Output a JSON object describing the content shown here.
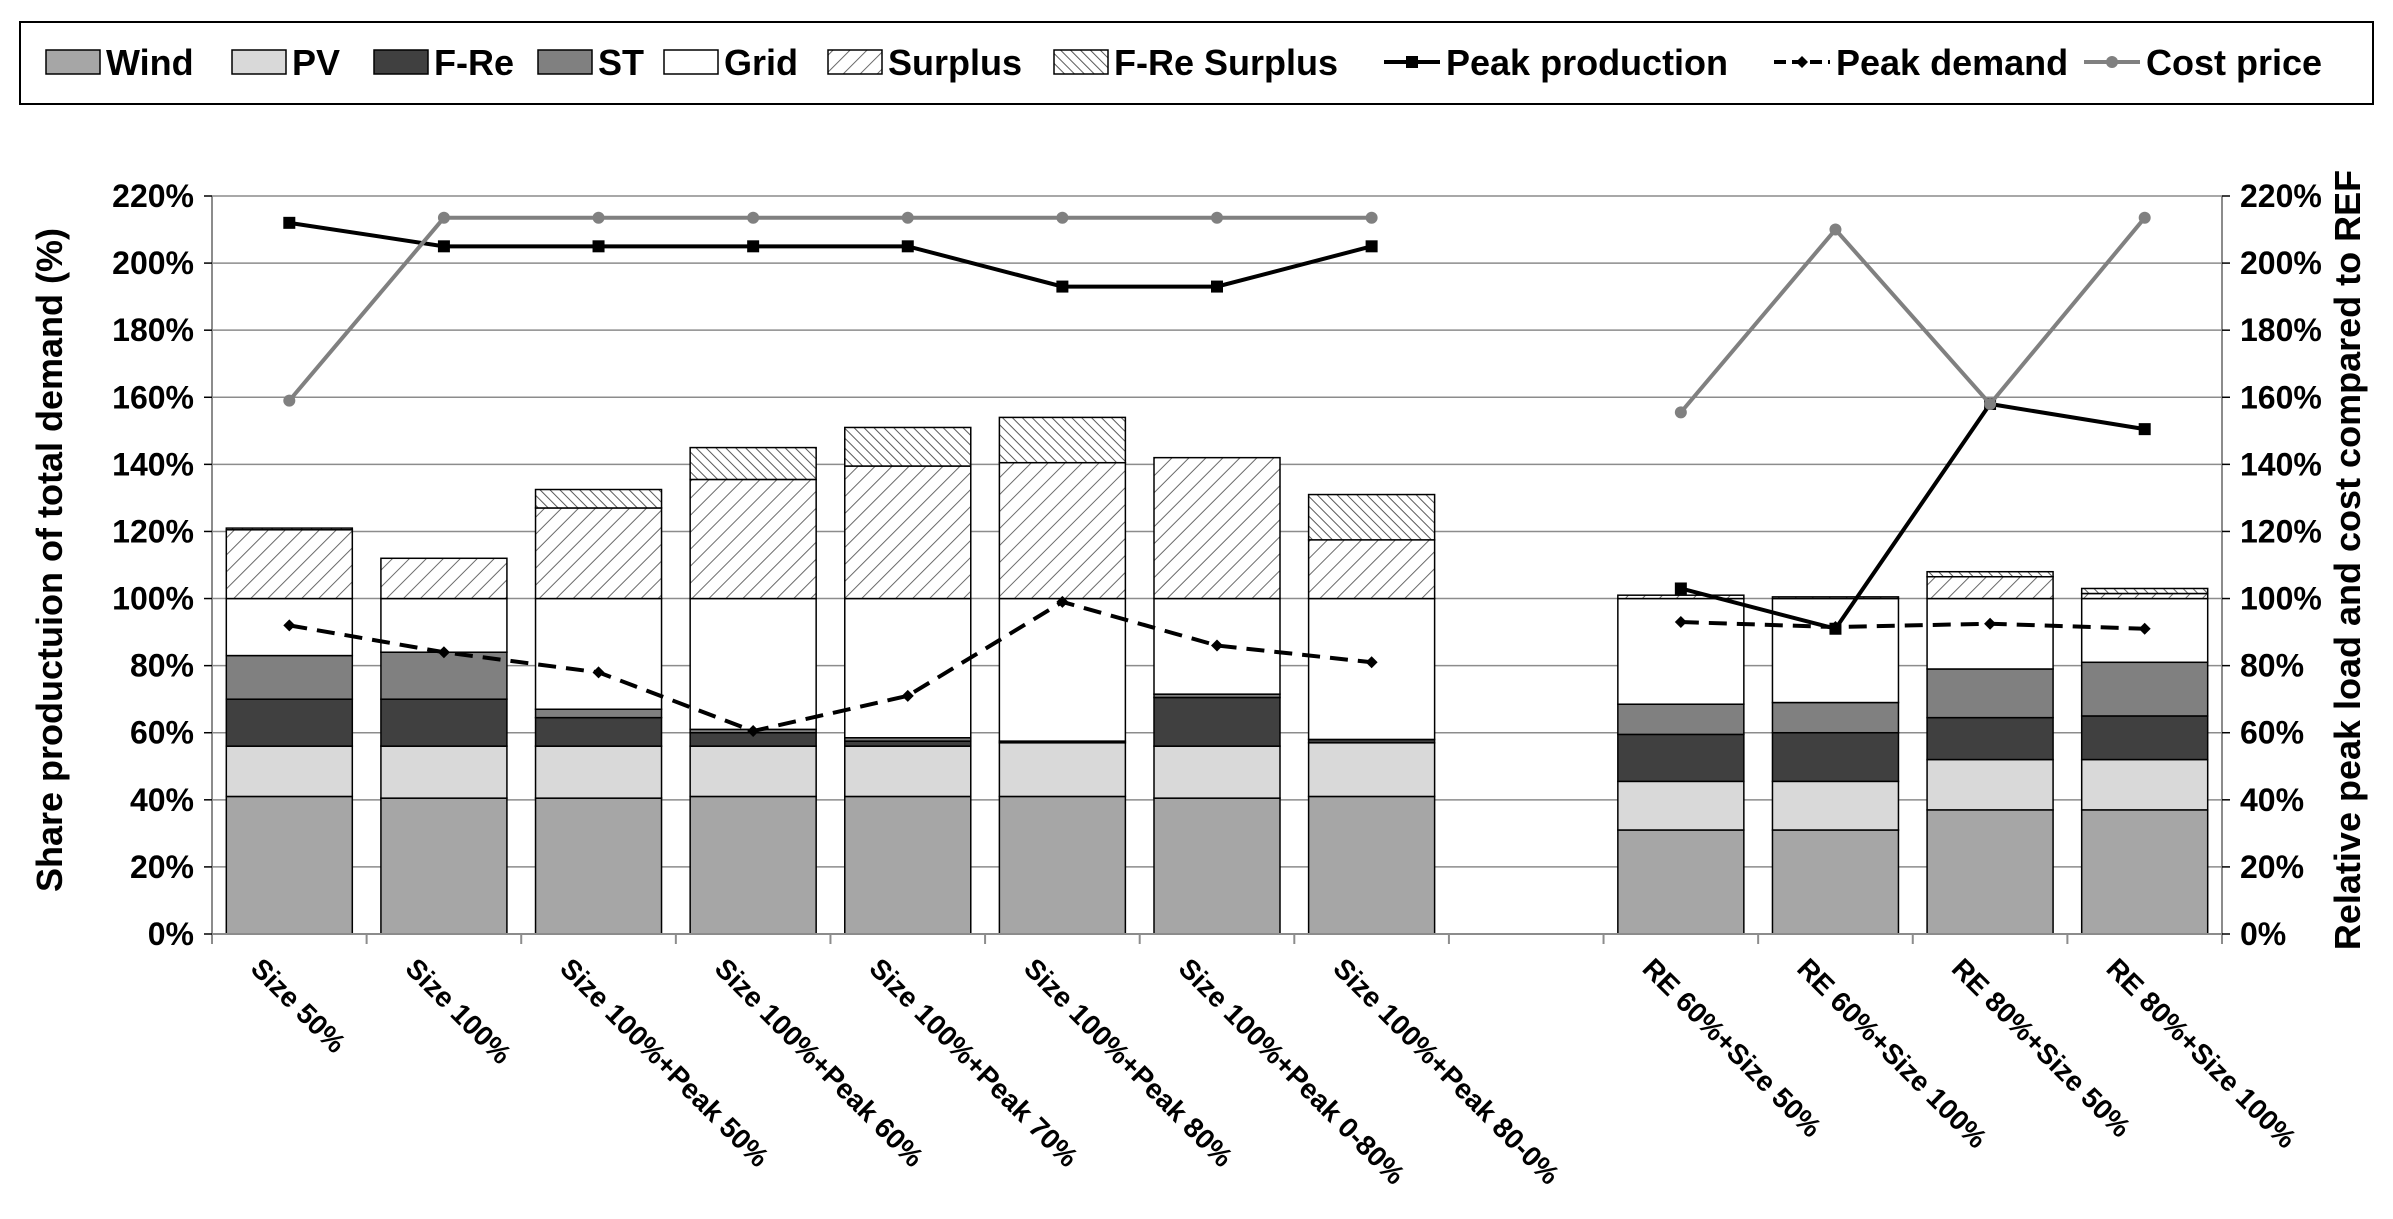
{
  "chart_data": {
    "type": "bar",
    "stacked": true,
    "title": "",
    "ylabel": "Share productuion of total demand (%)",
    "y2label": "Relative peak load and cost compared to REF",
    "ylim": [
      0,
      220
    ],
    "y2lim": [
      0,
      220
    ],
    "yticks": [
      "0%",
      "20%",
      "40%",
      "60%",
      "80%",
      "100%",
      "120%",
      "140%",
      "160%",
      "180%",
      "200%",
      "220%"
    ],
    "y2ticks": [
      "0%",
      "20%",
      "40%",
      "60%",
      "80%",
      "100%",
      "120%",
      "140%",
      "160%",
      "180%",
      "200%",
      "220%"
    ],
    "legend_position": "top",
    "categories": [
      "Size 50%",
      "Size 100%",
      "Size 100%+Peak 50%",
      "Size 100%+Peak 60%",
      "Size 100%+Peak 70%",
      "Size 100%+Peak 80%",
      "Size 100%+Peak 0-80%",
      "Size 100%+Peak 80-0%",
      "",
      "RE 60%+Size 50%",
      "RE 60%+Size 100%",
      "RE 80%+Size 50%",
      "RE 80%+Size 100%"
    ],
    "series": [
      {
        "name": "Wind",
        "kind": "bar",
        "color": "#a6a6a6",
        "values": [
          41,
          40.5,
          40.5,
          41,
          41,
          41,
          40.5,
          41,
          null,
          31,
          31,
          37,
          37
        ]
      },
      {
        "name": "PV",
        "kind": "bar",
        "color": "#d9d9d9",
        "values": [
          15,
          15.5,
          15.5,
          15,
          15,
          16,
          15.5,
          16,
          null,
          14.5,
          14.5,
          15,
          15
        ]
      },
      {
        "name": "F-Re",
        "kind": "bar",
        "color": "#404040",
        "values": [
          14,
          14,
          8.5,
          4,
          1.5,
          0.5,
          14.5,
          1,
          null,
          14,
          14.5,
          12.5,
          13
        ]
      },
      {
        "name": "ST",
        "kind": "bar",
        "color": "#808080",
        "values": [
          13,
          14,
          2.5,
          1,
          1,
          0,
          1,
          0,
          null,
          9,
          9,
          14.5,
          16
        ]
      },
      {
        "name": "Grid",
        "kind": "bar",
        "color": "#ffffff",
        "values": [
          17,
          16,
          33,
          39,
          41.5,
          42.5,
          28.5,
          42,
          null,
          31.5,
          31,
          21,
          19
        ]
      },
      {
        "name": "Surplus",
        "kind": "bar",
        "color": "#ffffff",
        "pattern": "hatch",
        "values": [
          20.5,
          12,
          27,
          35.5,
          39.5,
          40.5,
          42,
          17.5,
          null,
          1,
          0.5,
          6.5,
          1.5
        ]
      },
      {
        "name": "F-Re Surplus",
        "kind": "bar",
        "color": "#ffffff",
        "pattern": "hatch-dense",
        "values": [
          0.5,
          0,
          5.5,
          9.5,
          11.5,
          13.5,
          0,
          13.5,
          null,
          0,
          0,
          1.5,
          1.5
        ]
      },
      {
        "name": "Peak production",
        "kind": "line",
        "color": "#000000",
        "style": "solid",
        "marker": "square",
        "values": [
          212,
          205,
          205,
          205,
          205,
          193,
          193,
          205,
          null,
          103,
          91,
          158,
          150.5
        ]
      },
      {
        "name": "Peak demand",
        "kind": "line",
        "color": "#000000",
        "style": "dashed",
        "marker": "diamond",
        "values": [
          92,
          84,
          78,
          60.5,
          71,
          99,
          86,
          81,
          null,
          93,
          91.5,
          92.5,
          91
        ]
      },
      {
        "name": "Cost price",
        "kind": "line",
        "color": "#808080",
        "style": "solid",
        "marker": "circle",
        "values": [
          159,
          213.5,
          213.5,
          213.5,
          213.5,
          213.5,
          213.5,
          213.5,
          null,
          155.5,
          210,
          158,
          213.5
        ]
      }
    ]
  }
}
